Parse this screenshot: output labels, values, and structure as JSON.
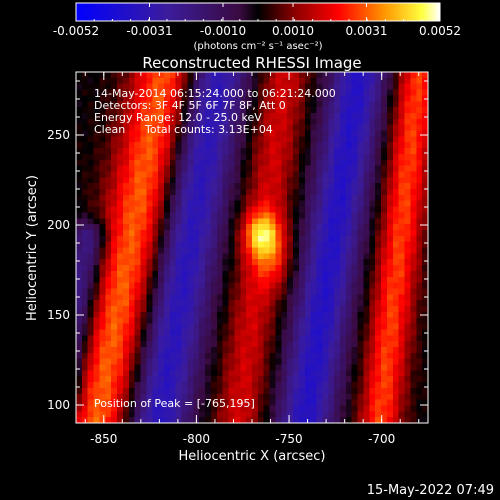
{
  "chart_data": {
    "type": "heatmap",
    "title": "Reconstructed RHESSI Image",
    "xlabel": "Heliocentric X (arcsec)",
    "ylabel": "Heliocentric Y (arcsec)",
    "xlim": [
      -865,
      -675
    ],
    "ylim": [
      90,
      285
    ],
    "x_ticks": [
      -850,
      -800,
      -750,
      -700
    ],
    "y_ticks": [
      100,
      150,
      200,
      250
    ],
    "colorbar": {
      "min": -0.0052,
      "max": 0.0052,
      "tick_values": [
        -0.0052,
        -0.0031,
        -0.001,
        0.001,
        0.0031,
        0.0052
      ],
      "tick_labels": [
        "-0.0052",
        "-0.0031",
        "-0.0010",
        "0.0010",
        "0.0031",
        "0.0052"
      ],
      "units": "(photons cm⁻² s⁻¹ asec⁻²)"
    },
    "peak": {
      "x": -765,
      "y": 195
    },
    "bands": [
      {
        "kind": "pos",
        "x0": -852,
        "y0": 100,
        "x1": -818,
        "y1": 275,
        "width": 22,
        "amp": 0.0032
      },
      {
        "kind": "neg",
        "x0": -820,
        "y0": 95,
        "x1": -790,
        "y1": 280,
        "width": 20,
        "amp": -0.0035
      },
      {
        "kind": "pos",
        "x0": -775,
        "y0": 110,
        "x1": -752,
        "y1": 285,
        "width": 16,
        "amp": 0.0018
      },
      {
        "kind": "neg",
        "x0": -740,
        "y0": 100,
        "x1": -712,
        "y1": 285,
        "width": 18,
        "amp": -0.0036
      },
      {
        "kind": "pos",
        "x0": -700,
        "y0": 100,
        "x1": -680,
        "y1": 285,
        "width": 14,
        "amp": 0.0028
      },
      {
        "kind": "neg",
        "x0": -870,
        "y0": 115,
        "x1": -860,
        "y1": 180,
        "width": 12,
        "amp": -0.0025
      }
    ],
    "blobs": [
      {
        "x": -765,
        "y": 195,
        "sx": 7,
        "sy": 9,
        "amp": 0.0028
      },
      {
        "x": -758,
        "y": 180,
        "sx": 7,
        "sy": 12,
        "amp": 0.0014
      }
    ]
  },
  "annotations": {
    "time_range": "14-May-2014 06:15:24.000 to 06:21:24.000",
    "detectors": "Detectors: 3F 4F 5F 6F 7F 8F, Att 0",
    "energy": "Energy Range: 12.0 - 25.0 keV",
    "method": "Clean",
    "counts": "Total counts: 3.13E+04",
    "peak_text": "Position of Peak = [-765,195]"
  },
  "footer": {
    "timestamp": "15-May-2022 07:49"
  }
}
